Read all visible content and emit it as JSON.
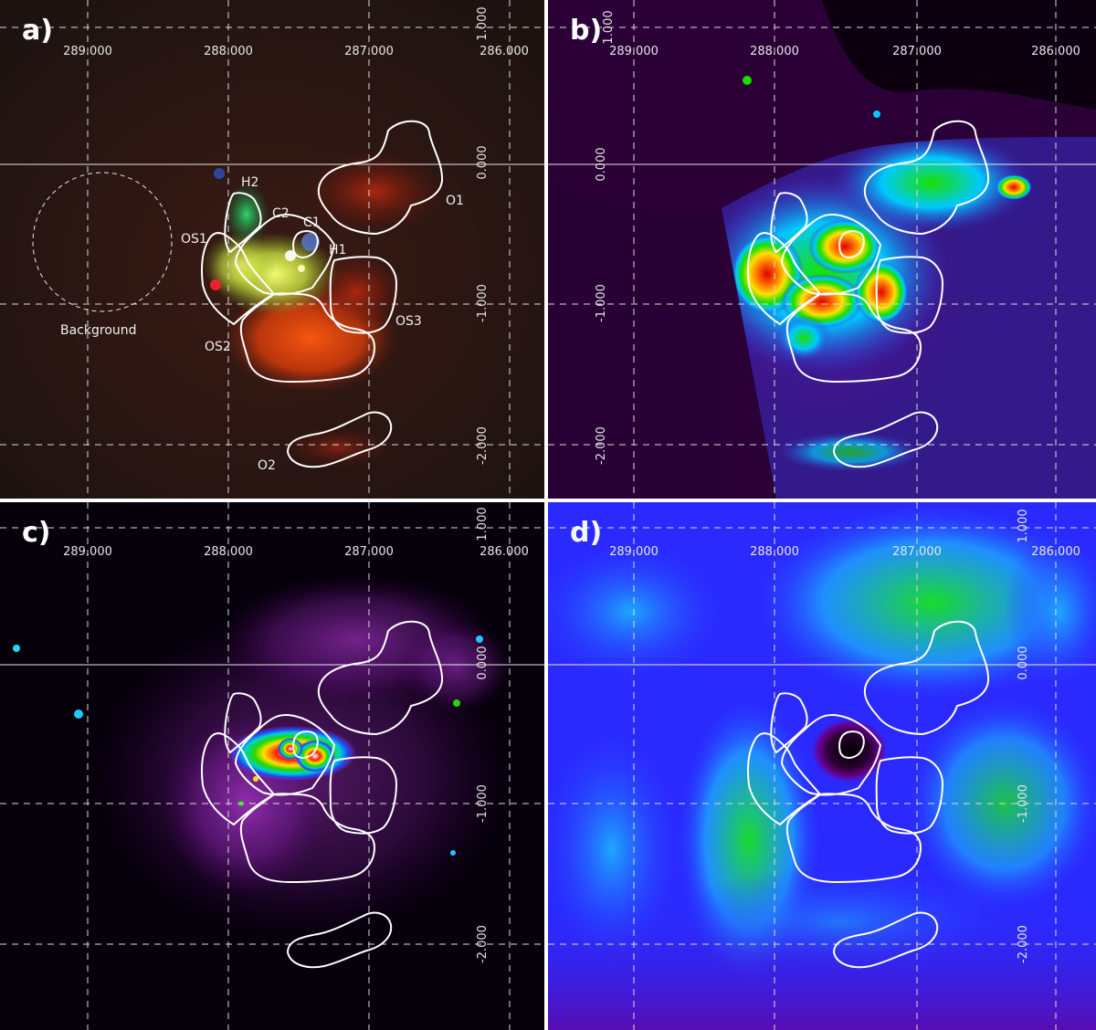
{
  "panels": [
    {
      "id": "a",
      "label": "a)"
    },
    {
      "id": "b",
      "label": "b)"
    },
    {
      "id": "c",
      "label": "c)"
    },
    {
      "id": "d",
      "label": "d)"
    }
  ],
  "axes": {
    "longitude_ticks": [
      "289.000",
      "288.000",
      "287.000",
      "286.000"
    ],
    "latitude_ticks": [
      "1.000",
      "0.000",
      "-1.000",
      "-2.000"
    ]
  },
  "regions": {
    "H2": "H2",
    "C2": "C2",
    "C1": "C1",
    "H1": "H1",
    "OS1": "OS1",
    "OS2": "OS2",
    "OS3": "OS3",
    "O1": "O1",
    "O2": "O2",
    "background": "Background"
  },
  "colors": {
    "grid_line": "#dcdcdc",
    "region_contour": "#ffffff",
    "panel_b_colormap": [
      "#000000",
      "#5a0070",
      "#3b2fd0",
      "#00c8ff",
      "#19e000",
      "#ffe100",
      "#ff7a00",
      "#e00000"
    ],
    "panel_c_colormap": [
      "#000000",
      "#4a005e",
      "#9a30b8",
      "#1e40ff",
      "#00d0d0",
      "#22d800",
      "#ffe000",
      "#ff2000",
      "#ffffff"
    ],
    "panel_d_colormap": [
      "#000000",
      "#6a0090",
      "#2a2aff",
      "#1da8ff",
      "#19dc2a"
    ]
  }
}
